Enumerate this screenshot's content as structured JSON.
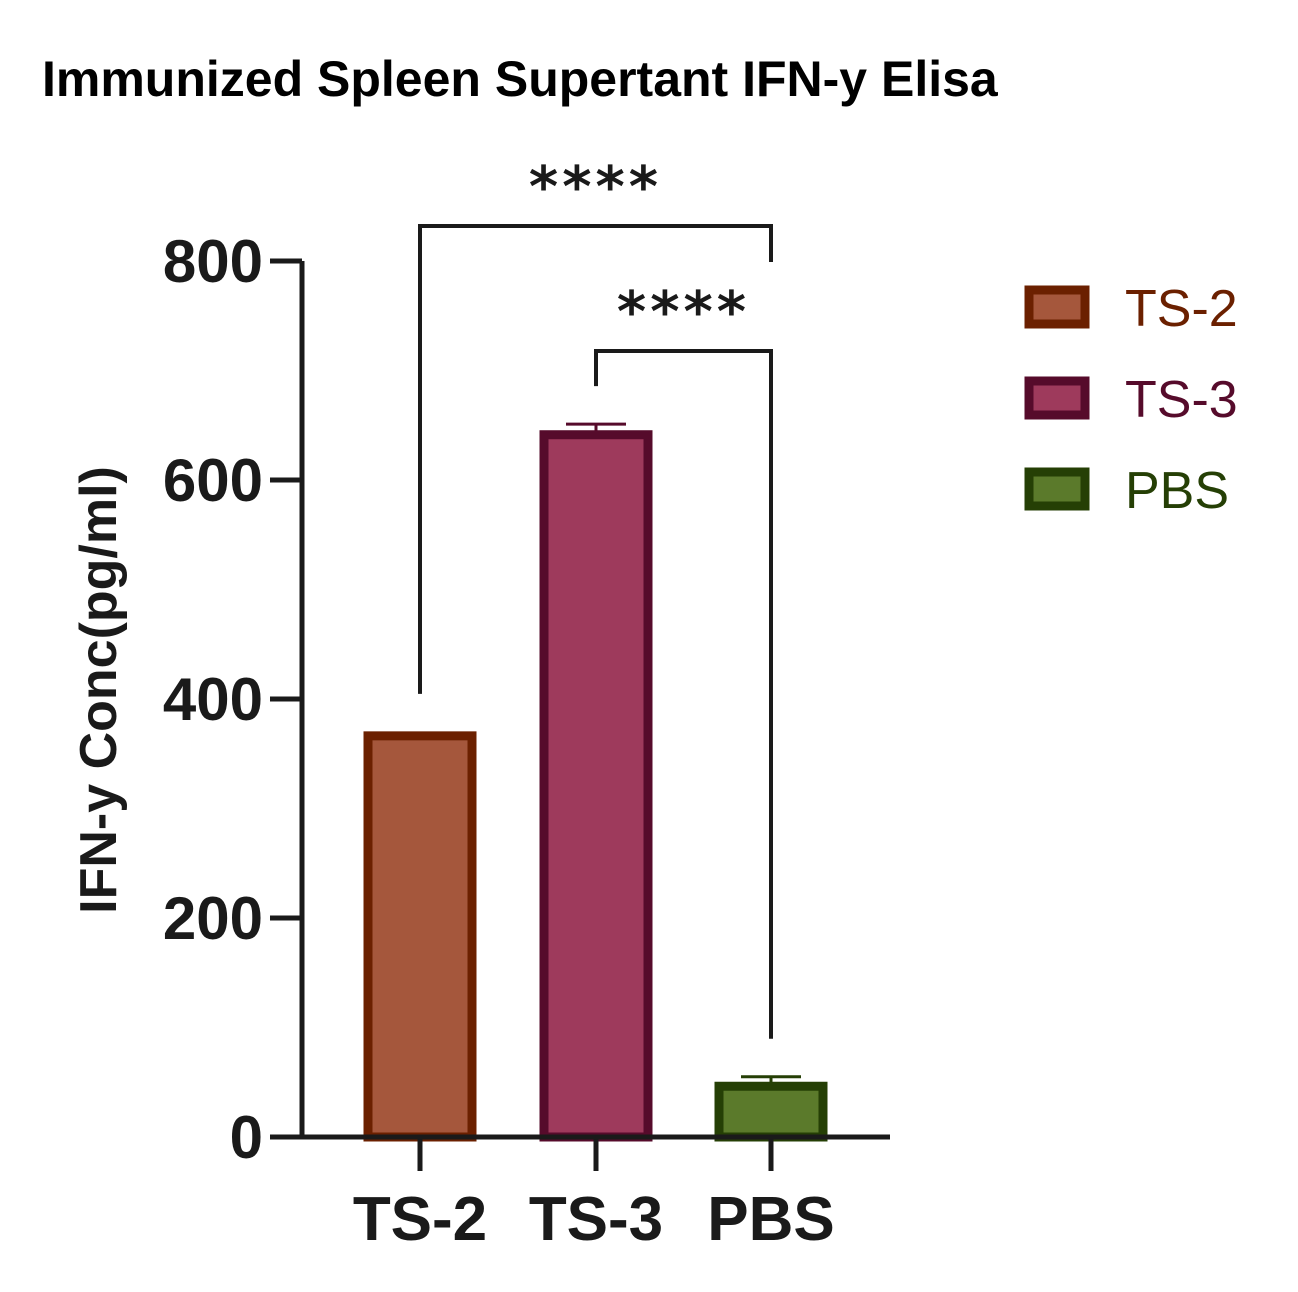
{
  "chart_data": {
    "type": "bar",
    "title": "Immunized Spleen Supertant IFN-y Elisa",
    "ylabel": "IFN-y Conc(pg/ml)",
    "xlabel": "",
    "ylim": [
      0,
      800
    ],
    "yticks": [
      0,
      200,
      400,
      600,
      800
    ],
    "grid": false,
    "legend_position": "right",
    "categories": [
      "TS-2",
      "TS-3",
      "PBS"
    ],
    "values": [
      370,
      645,
      50
    ],
    "error": [
      0,
      6,
      5
    ],
    "fill_colors": [
      "#a5573c",
      "#9e3a5c",
      "#5b7a2b"
    ],
    "edge_colors": [
      "#6b2000",
      "#560b2b",
      "#253f05"
    ],
    "legend": [
      {
        "label": "TS-2",
        "fill": "#a5573c",
        "edge": "#6b2000"
      },
      {
        "label": "TS-3",
        "fill": "#9e3a5c",
        "edge": "#560b2b"
      },
      {
        "label": "PBS",
        "fill": "#5b7a2b",
        "edge": "#253f05"
      }
    ],
    "significance": [
      {
        "from": "TS-2",
        "to": "PBS",
        "label": "****"
      },
      {
        "from": "TS-3",
        "to": "PBS",
        "label": "****"
      }
    ]
  }
}
